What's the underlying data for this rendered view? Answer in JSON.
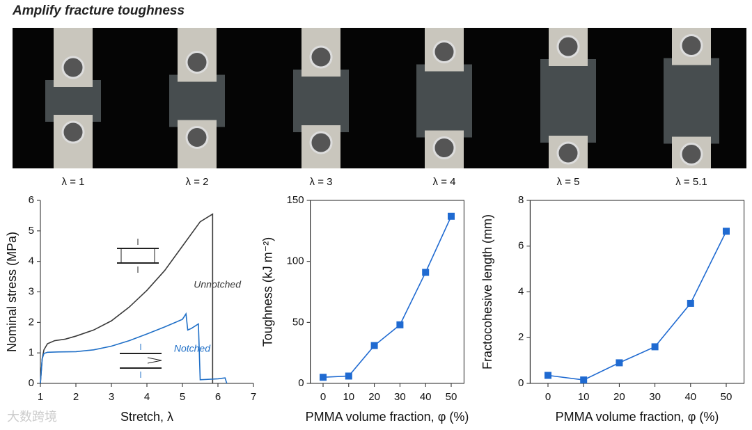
{
  "header": {
    "title": "Amplify fracture toughness",
    "watermark": "大数跨境"
  },
  "photos": {
    "labels": [
      "λ = 1",
      "λ = 2",
      "λ = 3",
      "λ = 4",
      "λ = 5",
      "λ = 5.1"
    ]
  },
  "chart_data": [
    {
      "type": "line",
      "xlabel": "Stretch, λ",
      "ylabel": "Nominal stress (MPa)",
      "xlim": [
        1,
        7
      ],
      "ylim": [
        0,
        6
      ],
      "xticks": [
        1,
        2,
        3,
        4,
        5,
        6,
        7
      ],
      "yticks": [
        0,
        1,
        2,
        3,
        4,
        5,
        6
      ],
      "series": [
        {
          "name": "Unnotched",
          "color": "#3a3a3a",
          "x": [
            1,
            1.05,
            1.1,
            1.2,
            1.4,
            1.7,
            2,
            2.5,
            3,
            3.5,
            4,
            4.5,
            5,
            5.5,
            5.85,
            5.85
          ],
          "values": [
            0,
            0.8,
            1.1,
            1.3,
            1.4,
            1.45,
            1.55,
            1.75,
            2.05,
            2.5,
            3.05,
            3.7,
            4.5,
            5.3,
            5.55,
            0
          ]
        },
        {
          "name": "Notched",
          "color": "#1f6fc7",
          "x": [
            1,
            1.05,
            1.1,
            1.2,
            1.5,
            2,
            2.5,
            3,
            3.5,
            4,
            4.5,
            5,
            5.1,
            5.15,
            5.25,
            5.45,
            5.5,
            6.0,
            6.2,
            6.25
          ],
          "values": [
            0,
            0.8,
            0.98,
            1.02,
            1.03,
            1.04,
            1.1,
            1.22,
            1.4,
            1.62,
            1.85,
            2.1,
            2.28,
            1.75,
            1.8,
            1.95,
            0.12,
            0.15,
            0.18,
            0
          ]
        }
      ]
    },
    {
      "type": "line",
      "markers": true,
      "color": "#1f6ad1",
      "xlabel": "PMMA volume fraction, φ (%)",
      "ylabel": "Toughness (kJ m⁻²)",
      "x": [
        0,
        10,
        20,
        30,
        40,
        50
      ],
      "values": [
        5,
        6,
        31,
        48,
        91,
        137
      ],
      "xlim": [
        -5,
        55
      ],
      "ylim": [
        0,
        150
      ],
      "xticks": [
        0,
        10,
        20,
        30,
        40,
        50
      ],
      "yticks": [
        0,
        50,
        100,
        150
      ]
    },
    {
      "type": "line",
      "markers": true,
      "color": "#1f6ad1",
      "xlabel": "PMMA volume fraction, φ (%)",
      "ylabel": "Fractocohesive length (mm)",
      "x": [
        0,
        10,
        20,
        30,
        40,
        50
      ],
      "values": [
        0.35,
        0.15,
        0.9,
        1.6,
        3.5,
        6.65
      ],
      "xlim": [
        -5,
        55
      ],
      "ylim": [
        0,
        8
      ],
      "xticks": [
        0,
        10,
        20,
        30,
        40,
        50
      ],
      "yticks": [
        0,
        2,
        4,
        6,
        8
      ]
    }
  ]
}
